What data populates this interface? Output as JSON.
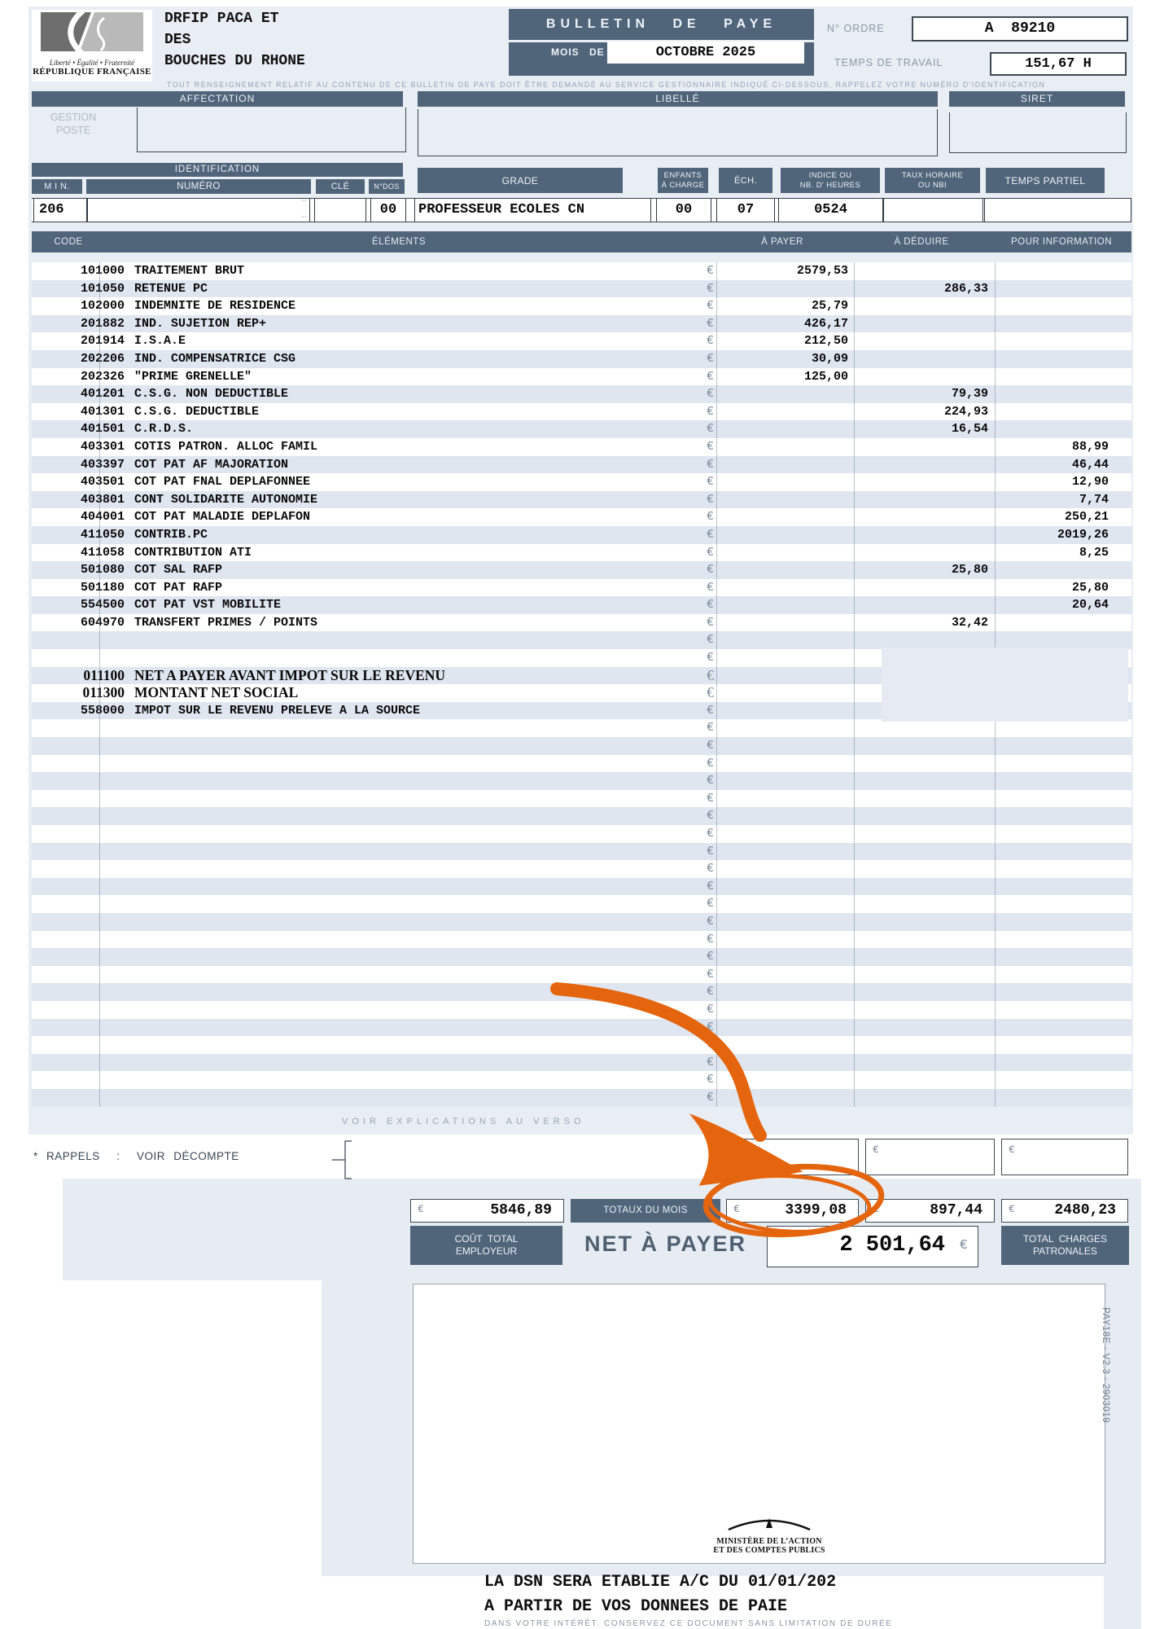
{
  "currency": "€",
  "colors": {
    "bar_dark": "#50647A",
    "panel": "#E9EDF4",
    "stripe": "#DFE6F0",
    "accent_orange": "#E5650F"
  },
  "republique": {
    "devise": "Liberté • Égalité • Fraternité",
    "nom": "RÉPUBLIQUE FRANÇAISE"
  },
  "employer": {
    "line1": "DRFIP PACA ET",
    "line2": "DES",
    "line3": "BOUCHES DU RHONE"
  },
  "title": {
    "bulletin": "BULLETIN DE PAYE",
    "mois_de": "MOIS DE",
    "mois_value": "OCTOBRE 2025",
    "n_ordre_label": "N° ORDRE",
    "n_ordre_value": "A  89210",
    "temps_travail_label": "TEMPS DE TRAVAIL",
    "temps_travail_value": "151,67 H"
  },
  "notice": "TOUT RENSEIGNEMENT RELATIF AU CONTENU DE CE BULLETIN DE PAYE DOIT ÊTRE DEMANDÉ AU SERVICE GESTIONNAIRE INDIQUÉ CI-DESSOUS, RAPPELEZ VOTRE NUMÉRO D'IDENTIFICATION",
  "sections": {
    "affectation": "AFFECTATION",
    "libelle": "LIBELLÉ",
    "siret": "SIRET",
    "identification": "IDENTIFICATION",
    "gestion1": "GESTION",
    "gestion2": "POSTE"
  },
  "id_headers": {
    "min": "M I N.",
    "numero": "NUMÉRO",
    "cle": "CLÉ",
    "ndos": "N°DOS",
    "grade": "GRADE",
    "enfants": "ENFANTS\nÀ CHARGE",
    "ech": "ÉCH.",
    "indice": "INDICE OU\nNB. D' HEURES",
    "taux": "TAUX HORAIRE\nOU NBI",
    "temps_partiel": "TEMPS PARTIEL"
  },
  "id_values": {
    "min": "206",
    "numero": "",
    "numero_marks": "··",
    "cle": "",
    "ndos": "00",
    "grade": "PROFESSEUR ECOLES CN",
    "enfants": "00",
    "ech": "07",
    "indice": "0524",
    "taux": "",
    "temps_partiel": ""
  },
  "table": {
    "headers": {
      "code": "CODE",
      "elements": "ÉLÉMENTS",
      "a_payer": "À PAYER",
      "a_deduire": "À DÉDUIRE",
      "pour_information": "POUR INFORMATION"
    },
    "rows": [
      {
        "c": "101000",
        "l": "TRAITEMENT BRUT",
        "p": "2579,53",
        "d": "",
        "i": ""
      },
      {
        "c": "101050",
        "l": "RETENUE PC",
        "p": "",
        "d": "286,33",
        "i": ""
      },
      {
        "c": "102000",
        "l": "INDEMNITE DE RESIDENCE",
        "p": "25,79",
        "d": "",
        "i": ""
      },
      {
        "c": "201882",
        "l": "IND. SUJETION REP+",
        "p": "426,17",
        "d": "",
        "i": ""
      },
      {
        "c": "201914",
        "l": "I.S.A.E",
        "p": "212,50",
        "d": "",
        "i": ""
      },
      {
        "c": "202206",
        "l": "IND. COMPENSATRICE CSG",
        "p": "30,09",
        "d": "",
        "i": ""
      },
      {
        "c": "202326",
        "l": "\"PRIME GRENELLE\"",
        "p": "125,00",
        "d": "",
        "i": ""
      },
      {
        "c": "401201",
        "l": "C.S.G. NON DEDUCTIBLE",
        "p": "",
        "d": "79,39",
        "i": ""
      },
      {
        "c": "401301",
        "l": "C.S.G. DEDUCTIBLE",
        "p": "",
        "d": "224,93",
        "i": ""
      },
      {
        "c": "401501",
        "l": "C.R.D.S.",
        "p": "",
        "d": "16,54",
        "i": ""
      },
      {
        "c": "403301",
        "l": "COTIS PATRON. ALLOC FAMIL",
        "p": "",
        "d": "",
        "i": "88,99"
      },
      {
        "c": "403397",
        "l": "COT PAT AF MAJORATION",
        "p": "",
        "d": "",
        "i": "46,44"
      },
      {
        "c": "403501",
        "l": "COT PAT FNAL DEPLAFONNEE",
        "p": "",
        "d": "",
        "i": "12,90"
      },
      {
        "c": "403801",
        "l": "CONT SOLIDARITE AUTONOMIE",
        "p": "",
        "d": "",
        "i": "7,74"
      },
      {
        "c": "404001",
        "l": "COT PAT MALADIE DEPLAFON",
        "p": "",
        "d": "",
        "i": "250,21"
      },
      {
        "c": "411050",
        "l": "CONTRIB.PC",
        "p": "",
        "d": "",
        "i": "2019,26"
      },
      {
        "c": "411058",
        "l": "CONTRIBUTION ATI",
        "p": "",
        "d": "",
        "i": "8,25"
      },
      {
        "c": "501080",
        "l": "COT SAL RAFP",
        "p": "",
        "d": "25,80",
        "i": ""
      },
      {
        "c": "501180",
        "l": "COT PAT RAFP",
        "p": "",
        "d": "",
        "i": "25,80"
      },
      {
        "c": "554500",
        "l": "COT PAT VST MOBILITE",
        "p": "",
        "d": "",
        "i": "20,64"
      },
      {
        "c": "604970",
        "l": "TRANSFERT PRIMES / POINTS",
        "p": "",
        "d": "32,42",
        "i": ""
      },
      {
        "c": "",
        "l": "",
        "p": "",
        "d": "",
        "i": ""
      },
      {
        "c": "",
        "l": "",
        "p": "",
        "d": "",
        "i": ""
      },
      {
        "c": "011100",
        "l": "NET A PAYER AVANT IMPOT SUR LE REVENU",
        "p": "",
        "d": "",
        "i": "",
        "s": true
      },
      {
        "c": "011300",
        "l": "MONTANT NET SOCIAL",
        "p": "",
        "d": "",
        "i": "",
        "s": true
      },
      {
        "c": "558000",
        "l": "IMPOT SUR LE REVENU PRELEVE A LA SOURCE",
        "p": "",
        "d": "",
        "i": ""
      }
    ],
    "empty_rows_after": 22
  },
  "verso_note": "VOIR EXPLICATIONS AU VERSO",
  "rappels": {
    "label": "* RAPPELS  :  VOIR DÉCOMPTE"
  },
  "totals": {
    "label": "TOTAUX DU MOIS",
    "cout_total_value": "5846,89",
    "a_payer_value": "3399,08",
    "a_deduire_value": "897,44",
    "pour_info_value": "2480,23",
    "cout_label": "COÛT  TOTAL\nEMPLOYEUR",
    "net_label": "NET À PAYER",
    "net_value": "2 501,64",
    "charges_label": "TOTAL  CHARGES\nPATRONALES"
  },
  "ministry": {
    "line1": "MINISTÈRE DE L’ACTION",
    "line2": "ET DES COMPTES PUBLICS"
  },
  "bottom": {
    "dsn1": "LA DSN SERA ETABLIE A/C DU 01/01/202",
    "dsn2": "A PARTIR DE VOS DONNEES DE PAIE",
    "keep": "DANS VOTRE INTÉRÊT.  CONSERVEZ CE DOCUMENT SANS LIMITATION DE DURÉE"
  },
  "ref_vertical": "PAY18E - V2.3 - 2903019"
}
